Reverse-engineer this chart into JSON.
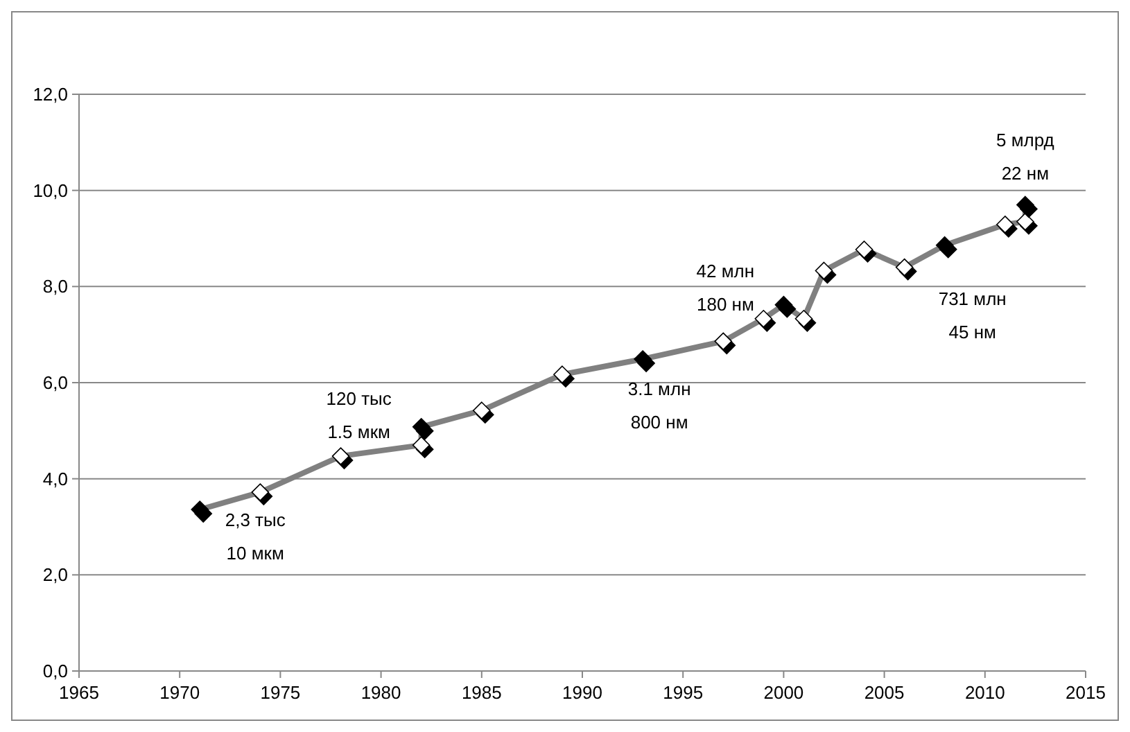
{
  "chart_data": {
    "type": "line",
    "x": [
      1971,
      1974,
      1978,
      1982,
      1982,
      1985,
      1989,
      1993,
      1997,
      1999,
      2000,
      2001,
      2002,
      2004,
      2006,
      2008,
      2011,
      2012,
      2012
    ],
    "series": [
      {
        "color": "#808080",
        "colors": [
          "#000000",
          "#ffffff",
          "#ffffff",
          "#ffffff",
          "#000000",
          "#ffffff",
          "#ffffff",
          "#000000",
          "#ffffff",
          "#ffffff",
          "#000000",
          "#ffffff",
          "#ffffff",
          "#ffffff",
          "#ffffff",
          "#000000",
          "#ffffff",
          "#ffffff",
          "#000000"
        ],
        "values": [
          3.36,
          3.72,
          4.47,
          4.7,
          5.08,
          5.42,
          6.17,
          6.49,
          6.86,
          7.33,
          7.62,
          7.33,
          8.33,
          8.77,
          8.4,
          8.86,
          9.29,
          9.35,
          9.7
        ]
      }
    ],
    "xlim": [
      1965,
      2015
    ],
    "xticks": [
      1965,
      1970,
      1975,
      1980,
      1985,
      1990,
      1995,
      2000,
      2005,
      2010,
      2015
    ],
    "ylim": [
      0,
      12
    ],
    "yticks": [
      {
        "value": 0,
        "label": "0,0"
      },
      {
        "value": 2,
        "label": "2,0"
      },
      {
        "value": 4,
        "label": "4,0"
      },
      {
        "value": 6,
        "label": "6,0"
      },
      {
        "value": 8,
        "label": "8,0"
      },
      {
        "value": 10,
        "label": "10,0"
      },
      {
        "value": 12,
        "label": "12,0"
      }
    ],
    "grid": "y",
    "marker": "diamond",
    "line_style": "solid",
    "annotations": [
      {
        "text": "2,3 тыс\n10 мкм",
        "x": 1971,
        "y": 3.36
      },
      {
        "text": "120 тыс\n1.5 мкм",
        "x": 1982,
        "y": 5.08
      },
      {
        "text": "3.1 млн\n800 нм",
        "x": 1993,
        "y": 6.49
      },
      {
        "text": "42 млн\n180 нм",
        "x": 2000,
        "y": 7.62
      },
      {
        "text": "731 млн\n45 нм",
        "x": 2008,
        "y": 8.86
      },
      {
        "text": "5 млрд\n22 нм",
        "x": 2012,
        "y": 9.7
      }
    ]
  }
}
